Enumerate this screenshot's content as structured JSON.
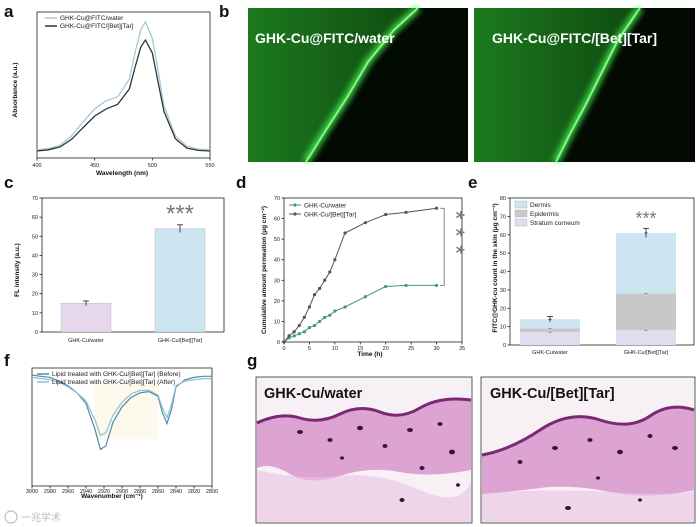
{
  "panel_labels": [
    "a",
    "b",
    "c",
    "d",
    "e",
    "f",
    "g"
  ],
  "watermark": "一兆学术",
  "chart_data": [
    {
      "panel": "a",
      "type": "line",
      "xlabel": "Wavelength (nm)",
      "ylabel": "Absorbance (a.u.)",
      "xlim": [
        400,
        550
      ],
      "xticks": [
        400,
        450,
        500,
        550
      ],
      "legend_position": "top-left",
      "colors": [
        "#a3c9d9",
        "#333333"
      ],
      "series": [
        {
          "name": "GHK-Cu@FITC/water",
          "x": [
            400,
            410,
            420,
            430,
            440,
            450,
            460,
            470,
            480,
            485,
            490,
            494,
            500,
            505,
            510,
            520,
            530,
            540,
            550
          ],
          "y": [
            0.14,
            0.16,
            0.22,
            0.38,
            0.62,
            0.84,
            0.98,
            1.05,
            1.35,
            1.8,
            2.2,
            2.33,
            2.05,
            1.5,
            0.9,
            0.38,
            0.2,
            0.15,
            0.14
          ]
        },
        {
          "name": "GHK-Cu@FITC/[Bet][Tar]",
          "x": [
            400,
            410,
            420,
            430,
            440,
            450,
            460,
            470,
            480,
            485,
            490,
            494,
            500,
            505,
            510,
            520,
            530,
            540,
            550
          ],
          "y": [
            0.12,
            0.14,
            0.19,
            0.32,
            0.52,
            0.72,
            0.84,
            0.92,
            1.18,
            1.55,
            1.9,
            2.02,
            1.8,
            1.3,
            0.8,
            0.33,
            0.17,
            0.13,
            0.12
          ]
        }
      ]
    },
    {
      "panel": "c",
      "type": "bar",
      "categories": [
        "GHK-Cu/water",
        "GHK-Cu/[Bet][Tar]"
      ],
      "values": [
        15,
        54
      ],
      "errors": [
        1.2,
        2.0
      ],
      "ylabel": "FL intensity (a.u.)",
      "ylim": [
        0,
        70
      ],
      "yticks": [
        0,
        10,
        20,
        30,
        40,
        50,
        60,
        70
      ],
      "colors": [
        "#e6d7ed",
        "#cde5f1"
      ],
      "significance": "***"
    },
    {
      "panel": "d",
      "type": "line",
      "xlabel": "Time (h)",
      "ylabel": "Cumulative amount permeation (μg cm⁻²)",
      "xlim": [
        0,
        35
      ],
      "ylim": [
        0,
        70
      ],
      "xticks": [
        0,
        5,
        10,
        15,
        20,
        25,
        30,
        35
      ],
      "yticks": [
        0,
        10,
        20,
        30,
        40,
        50,
        60,
        70
      ],
      "legend_position": "top-left",
      "colors": [
        "#3f9a76",
        "#555555"
      ],
      "series": [
        {
          "name": "GHK-Cu/water",
          "x": [
            0,
            1,
            2,
            3,
            4,
            5,
            6,
            7,
            8,
            9,
            10,
            12,
            16,
            20,
            24,
            30
          ],
          "y": [
            0,
            2,
            3,
            4,
            5,
            7,
            8,
            10,
            12,
            13,
            15,
            17,
            22,
            27,
            27.5,
            27.5
          ]
        },
        {
          "name": "GHK-Cu/[Bet][Tar]",
          "x": [
            0,
            1,
            2,
            3,
            4,
            5,
            6,
            7,
            8,
            9,
            10,
            12,
            16,
            20,
            24,
            30
          ],
          "y": [
            0,
            3,
            5,
            8,
            12,
            17,
            23,
            26,
            30,
            34,
            40,
            53,
            58,
            62,
            63,
            65
          ]
        }
      ],
      "significance": "***"
    },
    {
      "panel": "e",
      "type": "bar",
      "categories": [
        "GHK-Cu/water",
        "GHK-Cu/[Bet][Tar]"
      ],
      "series": [
        {
          "name": "Stratum corneum",
          "values": [
            7,
            8
          ]
        },
        {
          "name": "Epidermis",
          "values": [
            2,
            20
          ]
        },
        {
          "name": "Dermis",
          "values": [
            5,
            33
          ]
        }
      ],
      "errors": [
        1.5,
        2.5
      ],
      "ylabel": "FITC@GHK-cu count in the skin (μg cm⁻²)",
      "ylim": [
        0,
        80
      ],
      "yticks": [
        0,
        10,
        20,
        30,
        40,
        50,
        60,
        70,
        80
      ],
      "legend_position": "top-left",
      "colors": [
        "#e3dcef",
        "#c8c8c8",
        "#cde5f1"
      ],
      "significance": "***"
    },
    {
      "panel": "f",
      "type": "line",
      "xlabel": "Wavenumber (cm⁻¹)",
      "xlim": [
        3000,
        2800
      ],
      "xticks": [
        3000,
        2980,
        2960,
        2940,
        2920,
        2900,
        2880,
        2860,
        2840,
        2820,
        2800
      ],
      "legend_position": "top-left",
      "colors": [
        "#4d8da6",
        "#8fc1d6"
      ],
      "series": [
        {
          "name": "Lipid treated with GHK-Cu/[Bet][Tar] (Before)",
          "x": [
            3000,
            2990,
            2980,
            2970,
            2960,
            2950,
            2940,
            2930,
            2924,
            2918,
            2910,
            2900,
            2890,
            2880,
            2870,
            2860,
            2855,
            2850,
            2845,
            2840,
            2830,
            2820,
            2810,
            2800
          ],
          "y": [
            0.94,
            0.93,
            0.92,
            0.89,
            0.85,
            0.79,
            0.7,
            0.48,
            0.31,
            0.34,
            0.54,
            0.67,
            0.75,
            0.79,
            0.8,
            0.76,
            0.62,
            0.53,
            0.65,
            0.84,
            0.9,
            0.92,
            0.93,
            0.93
          ]
        },
        {
          "name": "Lipid treated with GHK-Cu/[Bet][Tar] (After)",
          "x": [
            3000,
            2990,
            2980,
            2970,
            2960,
            2950,
            2940,
            2930,
            2924,
            2918,
            2910,
            2900,
            2890,
            2880,
            2870,
            2860,
            2855,
            2850,
            2845,
            2840,
            2830,
            2820,
            2810,
            2800
          ],
          "y": [
            0.92,
            0.91,
            0.9,
            0.88,
            0.84,
            0.79,
            0.72,
            0.56,
            0.43,
            0.45,
            0.6,
            0.71,
            0.78,
            0.81,
            0.81,
            0.77,
            0.66,
            0.58,
            0.69,
            0.85,
            0.89,
            0.9,
            0.91,
            0.91
          ]
        }
      ]
    }
  ],
  "micrographs": [
    {
      "label": "GHK-Cu@FITC/water",
      "left_bright_fraction": 0.45
    },
    {
      "label": "GHK-Cu@FITC/[Bet][Tar]",
      "left_bright_fraction": 0.55
    }
  ],
  "histology": [
    {
      "label": "GHK-Cu/water"
    },
    {
      "label": "GHK-Cu/[Bet][Tar]"
    }
  ]
}
